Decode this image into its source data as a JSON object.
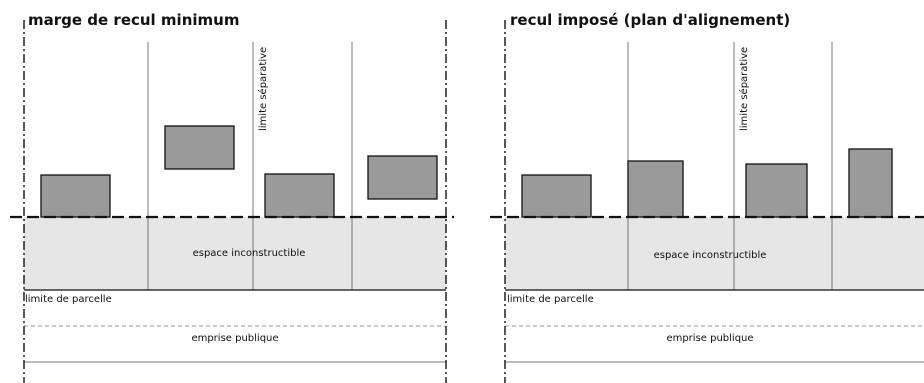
{
  "panels": [
    {
      "title": "marge de recul minimum",
      "labels": {
        "side_limit": "limite séparative",
        "buffer_zone": "espace inconstructible",
        "parcel_limit": "limite de parcelle",
        "public_domain": "emprise publique"
      }
    },
    {
      "title": "recul imposé (plan d'alignement)",
      "labels": {
        "side_limit": "limite séparative",
        "buffer_zone": "espace inconstructible",
        "parcel_limit": "limite de parcelle",
        "public_domain": "emprise publique"
      }
    }
  ]
}
